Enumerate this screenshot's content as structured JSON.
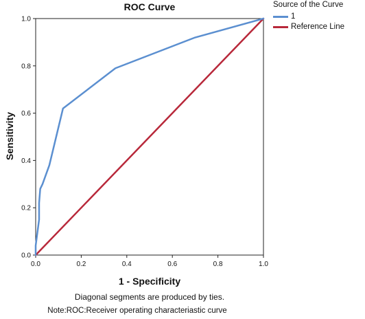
{
  "chart_data": {
    "type": "line",
    "title": "ROC Curve",
    "xlabel": "1 - Specificity",
    "ylabel": "Sensitivity",
    "xlim": [
      0.0,
      1.0
    ],
    "ylim": [
      0.0,
      1.0
    ],
    "x_ticks": [
      "0.0",
      "0.2",
      "0.4",
      "0.6",
      "0.8",
      "1.0"
    ],
    "y_ticks": [
      "0.0",
      "0.2",
      "0.4",
      "0.6",
      "0.8",
      "1.0"
    ],
    "grid": false,
    "legend_title": "Source of the Curve",
    "legend_position": "top-right outside",
    "series": [
      {
        "name": "1",
        "color": "#5b8fd0",
        "x": [
          0.0,
          0.0,
          0.015,
          0.015,
          0.02,
          0.03,
          0.06,
          0.12,
          0.35,
          0.7,
          1.0
        ],
        "y": [
          0.0,
          0.04,
          0.15,
          0.22,
          0.28,
          0.3,
          0.38,
          0.62,
          0.79,
          0.92,
          1.0
        ]
      },
      {
        "name": "Reference Line",
        "color": "#b8283a",
        "x": [
          0.0,
          1.0
        ],
        "y": [
          0.0,
          1.0
        ]
      }
    ],
    "notes": [
      "Diagonal segments are produced by ties.",
      "Note:ROC:Receiver operating characteriastic curve"
    ]
  }
}
